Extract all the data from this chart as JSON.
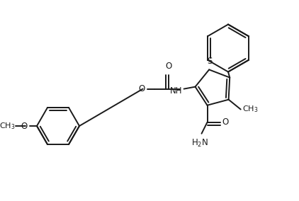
{
  "background_color": "#ffffff",
  "line_color": "#1a1a1a",
  "line_width": 1.4,
  "font_size": 8.5,
  "figsize": [
    4.22,
    2.84
  ],
  "dpi": 100,
  "xlim": [
    0.0,
    4.22
  ],
  "ylim": [
    0.0,
    2.84
  ]
}
